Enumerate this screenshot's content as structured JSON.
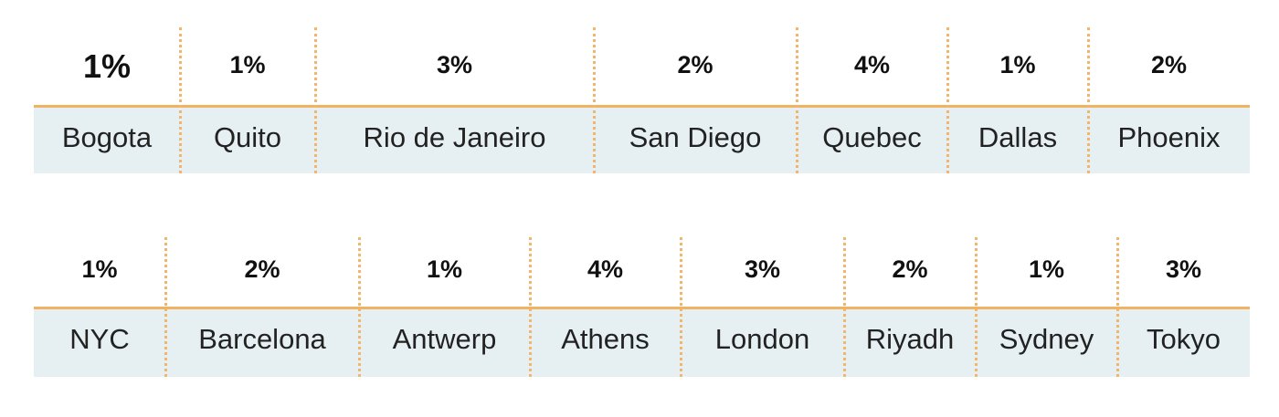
{
  "rows": [
    {
      "cells": [
        {
          "value": "1%",
          "city": "Bogota"
        },
        {
          "value": "1%",
          "city": "Quito"
        },
        {
          "value": "3%",
          "city": "Rio de Janeiro"
        },
        {
          "value": "2%",
          "city": "San Diego"
        },
        {
          "value": "4%",
          "city": "Quebec"
        },
        {
          "value": "1%",
          "city": "Dallas"
        },
        {
          "value": "2%",
          "city": "Phoenix"
        }
      ]
    },
    {
      "cells": [
        {
          "value": "1%",
          "city": "NYC"
        },
        {
          "value": "2%",
          "city": "Barcelona"
        },
        {
          "value": "1%",
          "city": "Antwerp"
        },
        {
          "value": "4%",
          "city": "Athens"
        },
        {
          "value": "3%",
          "city": "London"
        },
        {
          "value": "2%",
          "city": "Riyadh"
        },
        {
          "value": "1%",
          "city": "Sydney"
        },
        {
          "value": "3%",
          "city": "Tokyo"
        }
      ]
    }
  ]
}
